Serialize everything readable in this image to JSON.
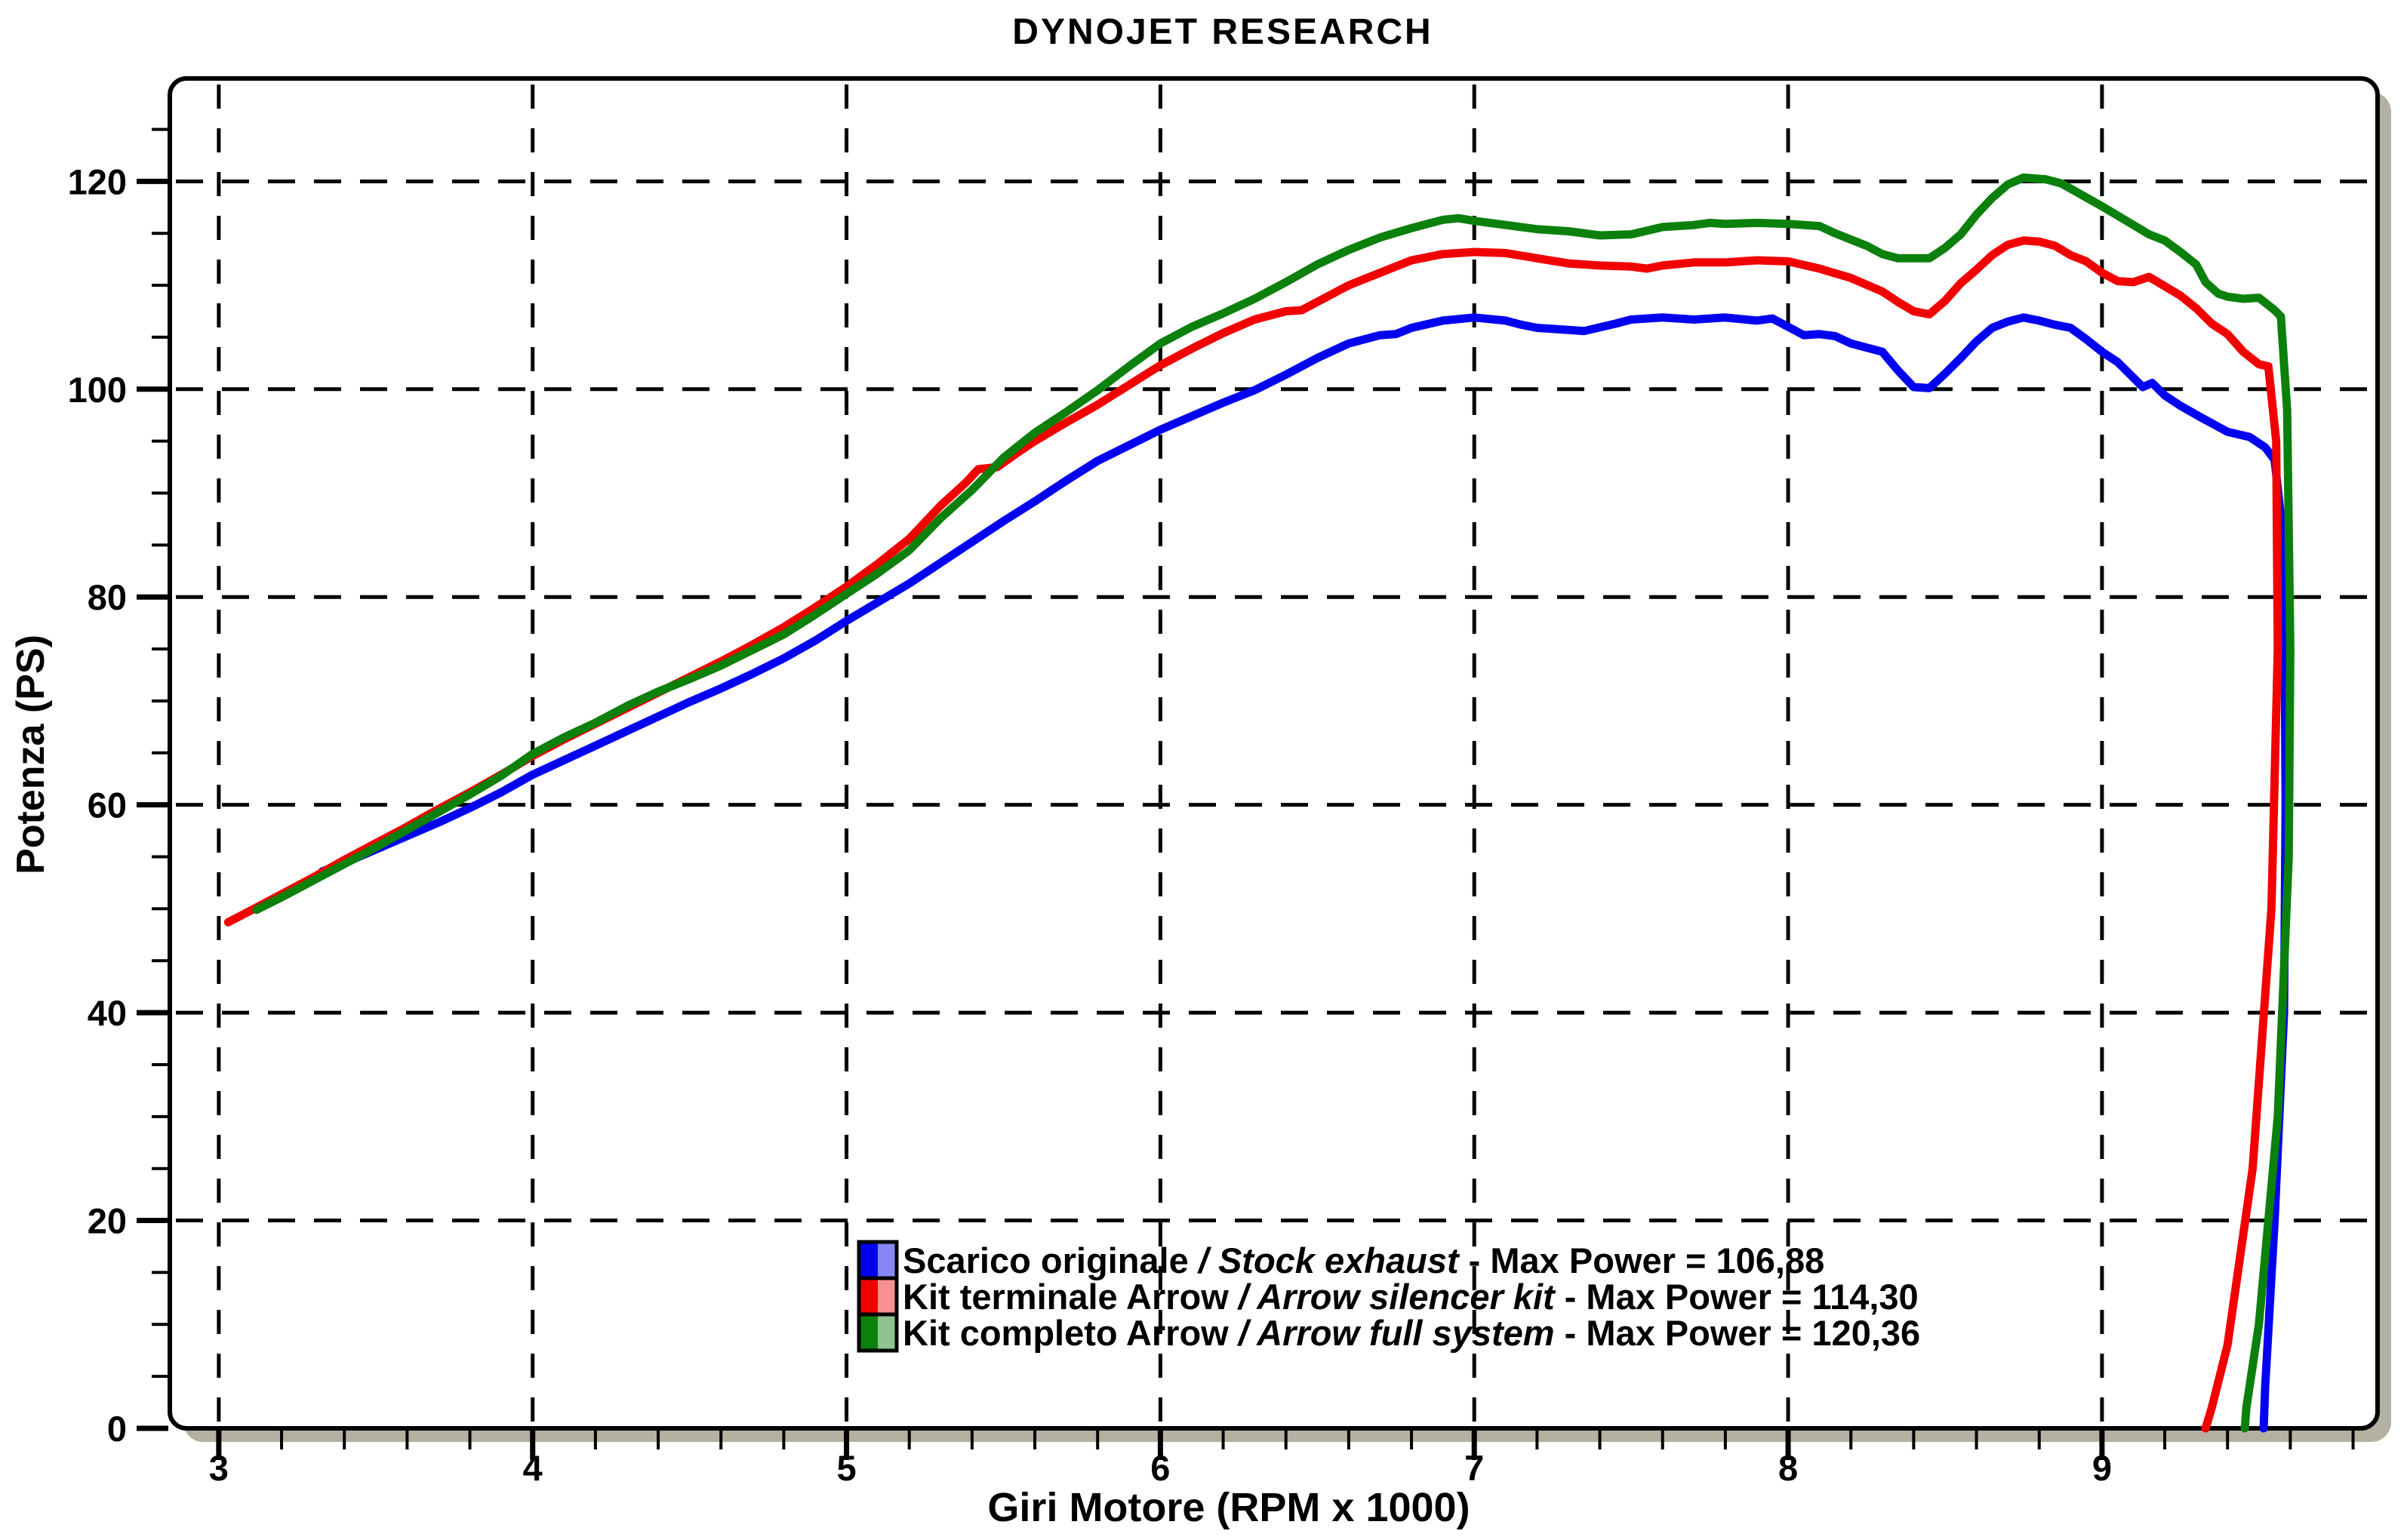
{
  "title": "DYNOJET RESEARCH",
  "colors": {
    "background": "#ffffff",
    "frame": "#000000",
    "shadow": "#b4b1a2",
    "grid": "#000000",
    "text": "#000000"
  },
  "chart_data": {
    "type": "line",
    "title": "DYNOJET RESEARCH",
    "xlabel": "Giri Motore (RPM x 1000)",
    "ylabel": "Potenza (PS)",
    "xlim": [
      2.844,
      9.878
    ],
    "ylim": [
      0,
      129.9
    ],
    "x_ticks": [
      3,
      4,
      5,
      6,
      7,
      8,
      9
    ],
    "y_ticks": [
      0,
      20,
      40,
      60,
      80,
      100,
      120
    ],
    "x_minor_step": 0.2,
    "y_minor_step": 5,
    "grid": "dashed, both axes, at major ticks",
    "legend": {
      "position": "inside bottom-center",
      "separator": " / ",
      "max_power_prefix": " - Max Power = "
    },
    "series": [
      {
        "name": "Scarico originale",
        "name_en": "Stock exhaust",
        "max_power": "106,88",
        "color": "#0202f0",
        "swatch_light": "#8787f7",
        "points": [
          [
            3.33,
            53.6
          ],
          [
            3.4,
            54.4
          ],
          [
            3.5,
            55.7
          ],
          [
            3.6,
            57.0
          ],
          [
            3.7,
            58.3
          ],
          [
            3.8,
            59.7
          ],
          [
            3.9,
            61.2
          ],
          [
            4.0,
            62.9
          ],
          [
            4.1,
            64.3
          ],
          [
            4.2,
            65.7
          ],
          [
            4.3,
            67.1
          ],
          [
            4.4,
            68.5
          ],
          [
            4.5,
            69.9
          ],
          [
            4.6,
            71.2
          ],
          [
            4.7,
            72.6
          ],
          [
            4.8,
            74.1
          ],
          [
            4.9,
            75.8
          ],
          [
            5.0,
            77.7
          ],
          [
            5.1,
            79.5
          ],
          [
            5.2,
            81.3
          ],
          [
            5.3,
            83.3
          ],
          [
            5.4,
            85.3
          ],
          [
            5.5,
            87.3
          ],
          [
            5.6,
            89.2
          ],
          [
            5.7,
            91.2
          ],
          [
            5.8,
            93.1
          ],
          [
            5.9,
            94.6
          ],
          [
            6.0,
            96.1
          ],
          [
            6.1,
            97.4
          ],
          [
            6.2,
            98.7
          ],
          [
            6.3,
            99.9
          ],
          [
            6.4,
            101.4
          ],
          [
            6.5,
            103.0
          ],
          [
            6.6,
            104.4
          ],
          [
            6.7,
            105.2
          ],
          [
            6.75,
            105.3
          ],
          [
            6.8,
            105.9
          ],
          [
            6.9,
            106.6
          ],
          [
            7.0,
            106.9
          ],
          [
            7.1,
            106.6
          ],
          [
            7.15,
            106.2
          ],
          [
            7.2,
            105.9
          ],
          [
            7.3,
            105.7
          ],
          [
            7.35,
            105.6
          ],
          [
            7.45,
            106.3
          ],
          [
            7.5,
            106.7
          ],
          [
            7.6,
            106.9
          ],
          [
            7.7,
            106.7
          ],
          [
            7.8,
            106.9
          ],
          [
            7.9,
            106.6
          ],
          [
            7.95,
            106.8
          ],
          [
            8.0,
            106.0
          ],
          [
            8.05,
            105.2
          ],
          [
            8.1,
            105.3
          ],
          [
            8.15,
            105.1
          ],
          [
            8.2,
            104.4
          ],
          [
            8.25,
            104.0
          ],
          [
            8.3,
            103.6
          ],
          [
            8.35,
            101.8
          ],
          [
            8.4,
            100.2
          ],
          [
            8.45,
            100.1
          ],
          [
            8.5,
            101.5
          ],
          [
            8.55,
            103.0
          ],
          [
            8.6,
            104.6
          ],
          [
            8.65,
            105.9
          ],
          [
            8.7,
            106.5
          ],
          [
            8.75,
            106.9
          ],
          [
            8.8,
            106.6
          ],
          [
            8.85,
            106.2
          ],
          [
            8.9,
            105.9
          ],
          [
            8.95,
            104.8
          ],
          [
            9.0,
            103.6
          ],
          [
            9.05,
            102.6
          ],
          [
            9.08,
            101.7
          ],
          [
            9.13,
            100.2
          ],
          [
            9.16,
            100.6
          ],
          [
            9.2,
            99.4
          ],
          [
            9.25,
            98.4
          ],
          [
            9.32,
            97.2
          ],
          [
            9.4,
            95.9
          ],
          [
            9.47,
            95.4
          ],
          [
            9.52,
            94.4
          ],
          [
            9.55,
            93.2
          ],
          [
            9.58,
            85
          ],
          [
            9.585,
            60
          ],
          [
            9.58,
            40
          ],
          [
            9.55,
            20
          ],
          [
            9.52,
            4
          ],
          [
            9.515,
            0
          ]
        ]
      },
      {
        "name": "Kit terminale Arrow",
        "name_en": "Arrow silencer kit",
        "max_power": "114,30",
        "color": "#f20000",
        "swatch_light": "#f79090",
        "points": [
          [
            3.03,
            48.7
          ],
          [
            3.1,
            49.8
          ],
          [
            3.2,
            51.4
          ],
          [
            3.3,
            53.0
          ],
          [
            3.4,
            54.7
          ],
          [
            3.5,
            56.3
          ],
          [
            3.6,
            57.9
          ],
          [
            3.7,
            59.6
          ],
          [
            3.8,
            61.2
          ],
          [
            3.9,
            62.9
          ],
          [
            4.0,
            64.7
          ],
          [
            4.1,
            66.3
          ],
          [
            4.2,
            67.8
          ],
          [
            4.3,
            69.3
          ],
          [
            4.4,
            70.8
          ],
          [
            4.5,
            72.3
          ],
          [
            4.6,
            73.8
          ],
          [
            4.7,
            75.4
          ],
          [
            4.8,
            77.1
          ],
          [
            4.9,
            79.0
          ],
          [
            5.0,
            81.0
          ],
          [
            5.1,
            83.2
          ],
          [
            5.2,
            85.6
          ],
          [
            5.3,
            88.8
          ],
          [
            5.38,
            91.0
          ],
          [
            5.42,
            92.3
          ],
          [
            5.48,
            92.5
          ],
          [
            5.55,
            94.0
          ],
          [
            5.6,
            95.0
          ],
          [
            5.7,
            96.8
          ],
          [
            5.8,
            98.5
          ],
          [
            5.9,
            100.4
          ],
          [
            6.0,
            102.3
          ],
          [
            6.1,
            103.9
          ],
          [
            6.2,
            105.4
          ],
          [
            6.3,
            106.7
          ],
          [
            6.4,
            107.5
          ],
          [
            6.45,
            107.6
          ],
          [
            6.5,
            108.4
          ],
          [
            6.6,
            110.0
          ],
          [
            6.7,
            111.2
          ],
          [
            6.8,
            112.4
          ],
          [
            6.9,
            113.0
          ],
          [
            7.0,
            113.2
          ],
          [
            7.1,
            113.1
          ],
          [
            7.2,
            112.6
          ],
          [
            7.3,
            112.1
          ],
          [
            7.4,
            111.9
          ],
          [
            7.5,
            111.8
          ],
          [
            7.55,
            111.6
          ],
          [
            7.6,
            111.9
          ],
          [
            7.7,
            112.2
          ],
          [
            7.8,
            112.2
          ],
          [
            7.9,
            112.4
          ],
          [
            8.0,
            112.3
          ],
          [
            8.1,
            111.6
          ],
          [
            8.2,
            110.7
          ],
          [
            8.3,
            109.4
          ],
          [
            8.35,
            108.4
          ],
          [
            8.4,
            107.5
          ],
          [
            8.45,
            107.2
          ],
          [
            8.5,
            108.5
          ],
          [
            8.55,
            110.2
          ],
          [
            8.6,
            111.5
          ],
          [
            8.65,
            112.9
          ],
          [
            8.7,
            113.9
          ],
          [
            8.75,
            114.3
          ],
          [
            8.8,
            114.2
          ],
          [
            8.85,
            113.8
          ],
          [
            8.9,
            112.9
          ],
          [
            8.95,
            112.3
          ],
          [
            9.0,
            111.2
          ],
          [
            9.05,
            110.4
          ],
          [
            9.1,
            110.3
          ],
          [
            9.15,
            110.8
          ],
          [
            9.2,
            109.9
          ],
          [
            9.25,
            109.0
          ],
          [
            9.3,
            107.8
          ],
          [
            9.35,
            106.3
          ],
          [
            9.4,
            105.3
          ],
          [
            9.45,
            103.6
          ],
          [
            9.5,
            102.4
          ],
          [
            9.53,
            102.2
          ],
          [
            9.555,
            95
          ],
          [
            9.56,
            75
          ],
          [
            9.54,
            50
          ],
          [
            9.48,
            25
          ],
          [
            9.4,
            8
          ],
          [
            9.35,
            2
          ],
          [
            9.33,
            0
          ]
        ]
      },
      {
        "name": "Kit completo Arrow",
        "name_en": "Arrow full system",
        "max_power": "120,36",
        "color": "#0c800c",
        "swatch_light": "#90c390",
        "points": [
          [
            3.12,
            49.9
          ],
          [
            3.2,
            51.1
          ],
          [
            3.3,
            52.7
          ],
          [
            3.4,
            54.3
          ],
          [
            3.5,
            55.9
          ],
          [
            3.6,
            57.6
          ],
          [
            3.7,
            59.3
          ],
          [
            3.8,
            61.0
          ],
          [
            3.9,
            62.8
          ],
          [
            4.0,
            64.9
          ],
          [
            4.1,
            66.5
          ],
          [
            4.2,
            67.9
          ],
          [
            4.3,
            69.5
          ],
          [
            4.4,
            70.9
          ],
          [
            4.5,
            72.1
          ],
          [
            4.6,
            73.4
          ],
          [
            4.7,
            74.9
          ],
          [
            4.8,
            76.4
          ],
          [
            4.9,
            78.3
          ],
          [
            5.0,
            80.3
          ],
          [
            5.1,
            82.3
          ],
          [
            5.2,
            84.5
          ],
          [
            5.3,
            87.6
          ],
          [
            5.4,
            90.3
          ],
          [
            5.5,
            93.4
          ],
          [
            5.6,
            95.8
          ],
          [
            5.7,
            97.8
          ],
          [
            5.8,
            99.9
          ],
          [
            5.9,
            102.2
          ],
          [
            6.0,
            104.4
          ],
          [
            6.1,
            106.0
          ],
          [
            6.2,
            107.3
          ],
          [
            6.3,
            108.7
          ],
          [
            6.4,
            110.3
          ],
          [
            6.5,
            112.0
          ],
          [
            6.6,
            113.4
          ],
          [
            6.7,
            114.6
          ],
          [
            6.8,
            115.5
          ],
          [
            6.9,
            116.3
          ],
          [
            6.95,
            116.45
          ],
          [
            7.0,
            116.2
          ],
          [
            7.1,
            115.8
          ],
          [
            7.2,
            115.4
          ],
          [
            7.3,
            115.2
          ],
          [
            7.4,
            114.8
          ],
          [
            7.5,
            114.9
          ],
          [
            7.6,
            115.6
          ],
          [
            7.7,
            115.8
          ],
          [
            7.75,
            116.0
          ],
          [
            7.8,
            115.9
          ],
          [
            7.9,
            116.0
          ],
          [
            8.0,
            115.9
          ],
          [
            8.1,
            115.7
          ],
          [
            8.15,
            115.0
          ],
          [
            8.2,
            114.4
          ],
          [
            8.25,
            113.8
          ],
          [
            8.3,
            113.0
          ],
          [
            8.35,
            112.6
          ],
          [
            8.45,
            112.6
          ],
          [
            8.5,
            113.6
          ],
          [
            8.55,
            114.9
          ],
          [
            8.6,
            116.8
          ],
          [
            8.65,
            118.4
          ],
          [
            8.7,
            119.7
          ],
          [
            8.75,
            120.36
          ],
          [
            8.82,
            120.2
          ],
          [
            8.87,
            119.8
          ],
          [
            8.9,
            119.3
          ],
          [
            9.0,
            117.6
          ],
          [
            9.1,
            115.8
          ],
          [
            9.15,
            114.9
          ],
          [
            9.2,
            114.3
          ],
          [
            9.25,
            113.2
          ],
          [
            9.3,
            112.0
          ],
          [
            9.33,
            110.3
          ],
          [
            9.37,
            109.2
          ],
          [
            9.4,
            108.9
          ],
          [
            9.45,
            108.7
          ],
          [
            9.5,
            108.8
          ],
          [
            9.55,
            107.6
          ],
          [
            9.57,
            107.0
          ],
          [
            9.59,
            98
          ],
          [
            9.6,
            75
          ],
          [
            9.595,
            55
          ],
          [
            9.56,
            30
          ],
          [
            9.5,
            10
          ],
          [
            9.46,
            2
          ],
          [
            9.455,
            0
          ]
        ]
      }
    ]
  }
}
